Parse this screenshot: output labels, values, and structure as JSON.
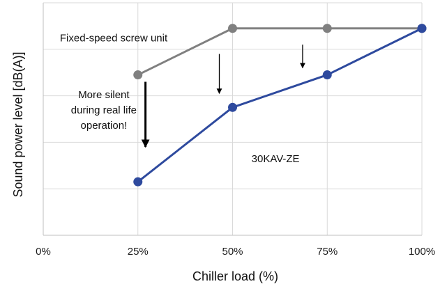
{
  "chart_data": {
    "type": "line",
    "x": [
      0,
      25,
      50,
      75,
      100
    ],
    "x_tick_labels": [
      "0%",
      "25%",
      "50%",
      "75%",
      "100%"
    ],
    "xlim": [
      0,
      100
    ],
    "ylim": [
      0,
      5
    ],
    "y_ticks": [
      0,
      1,
      2,
      3,
      4,
      5
    ],
    "xlabel": "Chiller load (%)",
    "ylabel": "Sound power level [dB(A)]",
    "grid": true,
    "legend": "none",
    "series": [
      {
        "name": "Fixed-speed screw unit",
        "color": "#808080",
        "points": [
          [
            25,
            3.45
          ],
          [
            50,
            4.45
          ],
          [
            75,
            4.45
          ],
          [
            100,
            4.45
          ]
        ]
      },
      {
        "name": "30KAV-ZE",
        "color": "#2e4a9e",
        "points": [
          [
            25,
            1.15
          ],
          [
            50,
            2.75
          ],
          [
            75,
            3.45
          ],
          [
            100,
            4.45
          ]
        ]
      }
    ],
    "annotations": [
      {
        "text": "More silent",
        "x": 16,
        "y": 2.95
      },
      {
        "text": "during real life",
        "x": 16,
        "y": 2.62
      },
      {
        "text": "operation!",
        "x": 16,
        "y": 2.29
      }
    ],
    "arrows": [
      {
        "x": 27,
        "y_from": 3.3,
        "y_to": 1.9,
        "heavy": true
      },
      {
        "x": 46.5,
        "y_from": 3.9,
        "y_to": 3.05,
        "heavy": false
      },
      {
        "x": 68.5,
        "y_from": 4.1,
        "y_to": 3.6,
        "heavy": false
      }
    ]
  }
}
